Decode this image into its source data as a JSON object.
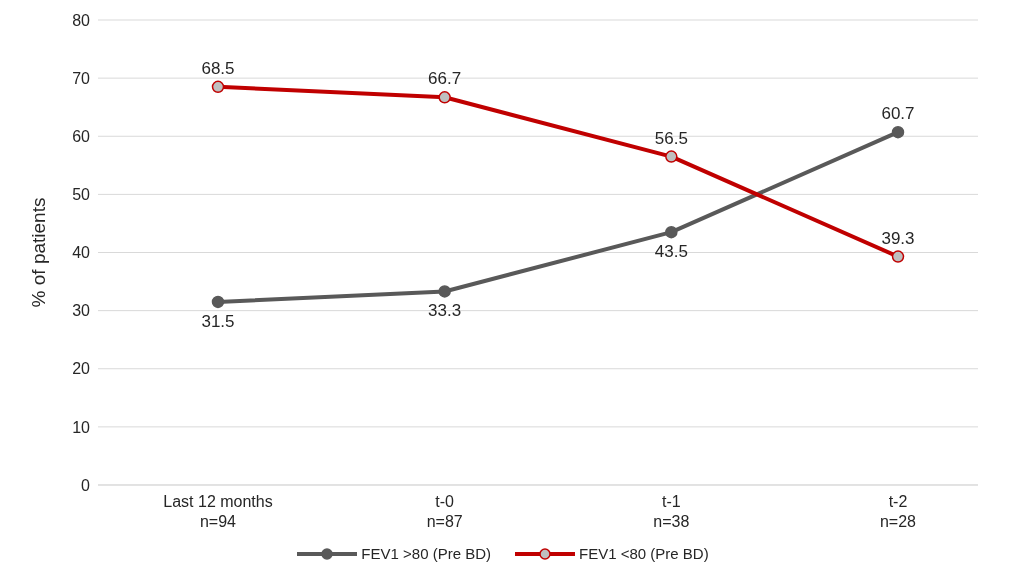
{
  "chart_data": {
    "type": "line",
    "ylabel": "% of patients",
    "categories": [
      "Last 12 months\nn=94",
      "t-0\nn=87",
      "t-1\nn=38",
      "t-2\nn=28"
    ],
    "series": [
      {
        "name": "FEV1 >80 (Pre BD)",
        "color": "#595959",
        "values": [
          31.5,
          33.3,
          43.5,
          60.7
        ]
      },
      {
        "name": "FEV1 <80 (Pre BD)",
        "color": "#c00000",
        "values": [
          68.5,
          66.7,
          56.5,
          39.3
        ]
      }
    ],
    "ylim": [
      0,
      80
    ],
    "yticks": [
      0,
      10,
      20,
      30,
      40,
      50,
      60,
      70,
      80
    ],
    "grid": "y",
    "legend": "bottom",
    "marker": "circle",
    "line_style": "solid",
    "data_labels": true
  }
}
